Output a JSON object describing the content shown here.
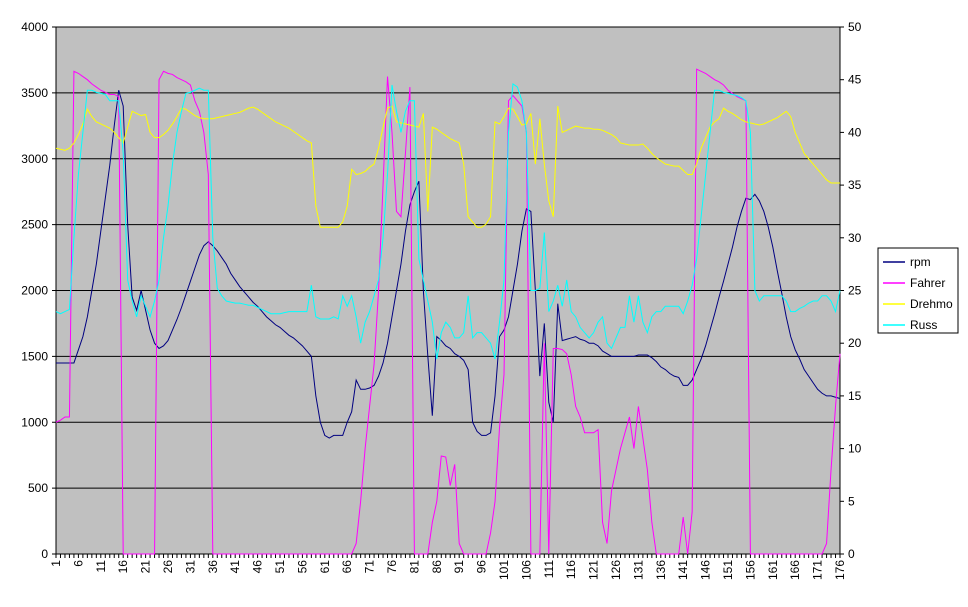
{
  "chart_data": {
    "type": "line",
    "categories": [
      "1",
      null,
      null,
      null,
      null,
      "6",
      null,
      null,
      null,
      null,
      "11",
      null,
      null,
      null,
      null,
      "16",
      null,
      null,
      null,
      null,
      "21",
      null,
      null,
      null,
      null,
      "26",
      null,
      null,
      null,
      null,
      "31",
      null,
      null,
      null,
      null,
      "36",
      null,
      null,
      null,
      null,
      "41",
      null,
      null,
      null,
      null,
      "46",
      null,
      null,
      null,
      null,
      "51",
      null,
      null,
      null,
      null,
      "56",
      null,
      null,
      null,
      null,
      "61",
      null,
      null,
      null,
      null,
      "66",
      null,
      null,
      null,
      null,
      "71",
      null,
      null,
      null,
      null,
      "76",
      null,
      null,
      null,
      null,
      "81",
      null,
      null,
      null,
      null,
      "86",
      null,
      null,
      null,
      null,
      "91",
      null,
      null,
      null,
      null,
      "96",
      null,
      null,
      null,
      null,
      "101",
      null,
      null,
      null,
      null,
      "106",
      null,
      null,
      null,
      null,
      "111",
      null,
      null,
      null,
      null,
      "116",
      null,
      null,
      null,
      null,
      "121",
      null,
      null,
      null,
      null,
      "126",
      null,
      null,
      null,
      null,
      "131",
      null,
      null,
      null,
      null,
      "136",
      null,
      null,
      null,
      null,
      "141",
      null,
      null,
      null,
      null,
      "146",
      null,
      null,
      null,
      null,
      "151",
      null,
      null,
      null,
      null,
      "156",
      null,
      null,
      null,
      null,
      "161",
      null,
      null,
      null,
      null,
      "166",
      null,
      null,
      null,
      null,
      "171",
      null,
      null,
      null,
      null,
      "176"
    ],
    "series": [
      {
        "name": "rpm",
        "color": "#000080",
        "axis": "y",
        "values": [
          1450,
          1450,
          1450,
          1450,
          1450,
          1550,
          1650,
          1800,
          2000,
          2200,
          2450,
          2700,
          2950,
          3250,
          3520,
          3400,
          2500,
          1950,
          1850,
          2000,
          1850,
          1700,
          1600,
          1560,
          1580,
          1620,
          1700,
          1780,
          1870,
          1970,
          2070,
          2170,
          2270,
          2340,
          2370,
          2340,
          2300,
          2250,
          2200,
          2130,
          2080,
          2030,
          1990,
          1950,
          1910,
          1880,
          1840,
          1800,
          1770,
          1740,
          1720,
          1690,
          1660,
          1640,
          1610,
          1580,
          1540,
          1500,
          1200,
          1000,
          900,
          880,
          900,
          900,
          900,
          1000,
          1080,
          1320,
          1250,
          1250,
          1260,
          1280,
          1350,
          1450,
          1600,
          1800,
          2000,
          2200,
          2450,
          2650,
          2750,
          2830,
          2000,
          1500,
          1050,
          1650,
          1620,
          1580,
          1560,
          1520,
          1500,
          1470,
          1400,
          1000,
          930,
          900,
          900,
          920,
          1200,
          1650,
          1700,
          1800,
          2000,
          2200,
          2450,
          2620,
          2600,
          2000,
          1350,
          1750,
          1150,
          1000,
          1900,
          1620,
          1630,
          1640,
          1650,
          1630,
          1620,
          1600,
          1600,
          1580,
          1540,
          1520,
          1500,
          1500,
          1500,
          1500,
          1500,
          1500,
          1510,
          1510,
          1510,
          1490,
          1460,
          1420,
          1400,
          1370,
          1350,
          1340,
          1280,
          1280,
          1320,
          1400,
          1480,
          1580,
          1700,
          1820,
          1950,
          2070,
          2200,
          2330,
          2480,
          2600,
          2700,
          2690,
          2730,
          2680,
          2600,
          2480,
          2330,
          2150,
          1980,
          1800,
          1650,
          1550,
          1480,
          1400,
          1350,
          1300,
          1250,
          1220,
          1200,
          1200,
          1190,
          1180
        ]
      },
      {
        "name": "Fahrer",
        "color": "#ff00ff",
        "axis": "y2",
        "values": [
          12.5,
          12.7,
          13,
          13,
          45.8,
          45.6,
          45.3,
          45,
          44.6,
          44.3,
          44,
          43.8,
          43.6,
          43.6,
          43.4,
          0,
          0,
          0,
          0,
          0,
          0,
          0,
          0,
          45,
          45.8,
          45.6,
          45.5,
          45.2,
          45,
          44.8,
          44.5,
          43,
          42,
          40,
          36,
          0,
          0,
          0,
          0,
          0,
          0,
          0,
          0,
          0,
          0,
          0,
          0,
          0,
          0,
          0,
          0,
          0,
          0,
          0,
          0,
          0,
          0,
          0,
          0,
          0,
          0,
          0,
          0,
          0,
          0,
          0,
          0,
          1,
          5,
          10,
          14,
          18,
          25,
          35,
          45.3,
          40,
          32.5,
          32,
          38,
          44.3,
          0,
          0,
          0,
          0,
          3,
          5,
          9.3,
          9.2,
          6.5,
          8.5,
          1,
          0,
          0,
          0,
          0,
          0,
          0,
          2,
          5,
          12,
          17,
          43,
          43.5,
          43,
          42.5,
          40,
          0,
          0,
          0,
          20,
          0,
          19.5,
          19.5,
          19.4,
          19,
          17,
          14,
          13,
          11.5,
          11.5,
          11.5,
          11.8,
          3,
          1,
          6,
          8,
          10,
          11.5,
          13,
          10,
          14,
          11,
          8,
          3,
          0,
          0,
          0,
          0,
          0,
          0,
          3.5,
          0,
          4,
          46,
          45.8,
          45.6,
          45.3,
          45,
          44.8,
          44.5,
          44,
          43.7,
          43.4,
          43.2,
          43,
          0,
          0,
          0,
          0,
          0,
          0,
          0,
          0,
          0,
          0,
          0,
          0,
          0,
          0,
          0,
          0,
          0,
          1,
          8,
          14,
          19
        ]
      },
      {
        "name": "Drehmo",
        "color": "#ffff00",
        "axis": "y2",
        "values": [
          38.5,
          38.4,
          38.3,
          38.5,
          39,
          39.8,
          40.8,
          42.2,
          41.5,
          41,
          40.8,
          40.6,
          40.4,
          40,
          39.5,
          39,
          40.5,
          42,
          41.8,
          41.6,
          41.7,
          40,
          39.5,
          39.5,
          39.8,
          40.2,
          40.8,
          41.5,
          42.3,
          42.2,
          41.9,
          41.6,
          41.4,
          41.3,
          41.3,
          41.3,
          41.4,
          41.5,
          41.6,
          41.7,
          41.8,
          41.9,
          42.1,
          42.3,
          42.4,
          42.2,
          41.9,
          41.6,
          41.3,
          41,
          40.8,
          40.6,
          40.4,
          40.1,
          39.8,
          39.5,
          39.2,
          39,
          33,
          31,
          31,
          31,
          31,
          31,
          31.5,
          33,
          36.5,
          36,
          36.1,
          36.3,
          36.7,
          37,
          38.5,
          40.5,
          42.3,
          42.5,
          41,
          40.9,
          40.8,
          40.7,
          40.6,
          40.5,
          41.8,
          32.5,
          40.5,
          40.3,
          40,
          39.7,
          39.4,
          39.2,
          39,
          37,
          32,
          31.5,
          31,
          31,
          31.3,
          32,
          41,
          40.8,
          41.5,
          42.3,
          42.2,
          41.5,
          40.7,
          40.8,
          41.8,
          37,
          41.3,
          37,
          33.5,
          32,
          42.5,
          40,
          40.2,
          40.4,
          40.6,
          40.5,
          40.4,
          40.4,
          40.3,
          40.3,
          40.2,
          40,
          39.8,
          39.5,
          39,
          38.9,
          38.8,
          38.8,
          38.8,
          38.9,
          38.5,
          38,
          37.6,
          37.3,
          37,
          36.9,
          36.8,
          36.8,
          36.4,
          36,
          36,
          37,
          38.5,
          39.5,
          40.5,
          41,
          41.3,
          42.3,
          42,
          41.8,
          41.5,
          41.2,
          41,
          40.9,
          40.8,
          40.7,
          40.8,
          41,
          41.2,
          41.4,
          41.7,
          42,
          41.5,
          40,
          39,
          38,
          37.5,
          37,
          36.5,
          36,
          35.5,
          35.2,
          35.2,
          35.2
        ]
      },
      {
        "name": "Russ",
        "color": "#00ffff",
        "axis": "y2",
        "values": [
          23,
          22.8,
          23,
          23.2,
          30,
          36,
          40,
          44,
          44,
          43.8,
          43.7,
          43.6,
          43,
          43,
          43,
          38,
          26,
          24,
          22.5,
          24.5,
          23.5,
          22.5,
          24,
          26,
          30,
          33,
          37,
          40,
          42,
          43.7,
          43.8,
          44,
          44.2,
          44,
          44,
          30,
          25.2,
          24.5,
          24,
          23.9,
          23.8,
          23.8,
          23.7,
          23.6,
          23.6,
          23.4,
          23.2,
          23,
          22.8,
          22.8,
          22.8,
          22.9,
          23,
          23,
          23,
          23,
          23,
          25.5,
          22.5,
          22.3,
          22.3,
          22.3,
          22.5,
          22.3,
          24.5,
          23.5,
          24.5,
          22.5,
          20,
          22,
          23,
          24.5,
          26,
          30,
          36,
          44.5,
          42,
          40,
          42,
          43,
          43,
          28,
          26,
          24,
          22,
          18.5,
          21,
          22,
          21.5,
          20.5,
          20.5,
          21,
          24.5,
          20.5,
          21,
          21,
          20.5,
          20,
          18.5,
          22,
          26,
          40,
          44.6,
          44.3,
          43,
          40,
          25,
          25,
          25.2,
          30.5,
          23,
          24,
          25.5,
          23.5,
          26,
          23,
          22.5,
          21.5,
          21,
          20.5,
          21,
          22,
          22.5,
          20,
          19.5,
          20.5,
          21.5,
          21.5,
          24.5,
          22,
          24.5,
          22,
          21,
          22.5,
          23,
          23,
          23.5,
          23.5,
          23.5,
          23.5,
          22.8,
          24,
          25.5,
          28,
          32,
          36,
          40,
          44,
          44,
          43.8,
          43.7,
          43.6,
          43.5,
          43.3,
          43,
          40,
          25,
          24,
          24.5,
          24.5,
          24.5,
          24.5,
          24.5,
          24,
          23,
          23,
          23.3,
          23.5,
          23.8,
          24,
          24,
          24.5,
          24.5,
          24,
          23,
          25
        ]
      }
    ],
    "ylim": [
      0,
      4000
    ],
    "yticks": [
      0,
      500,
      1000,
      1500,
      2000,
      2500,
      3000,
      3500,
      4000
    ],
    "y2lim": [
      0,
      50
    ],
    "y2ticks": [
      0,
      5,
      10,
      15,
      20,
      25,
      30,
      35,
      40,
      45,
      50
    ],
    "grid": true,
    "legend": "right",
    "plot_background": "#c0c0c0"
  }
}
